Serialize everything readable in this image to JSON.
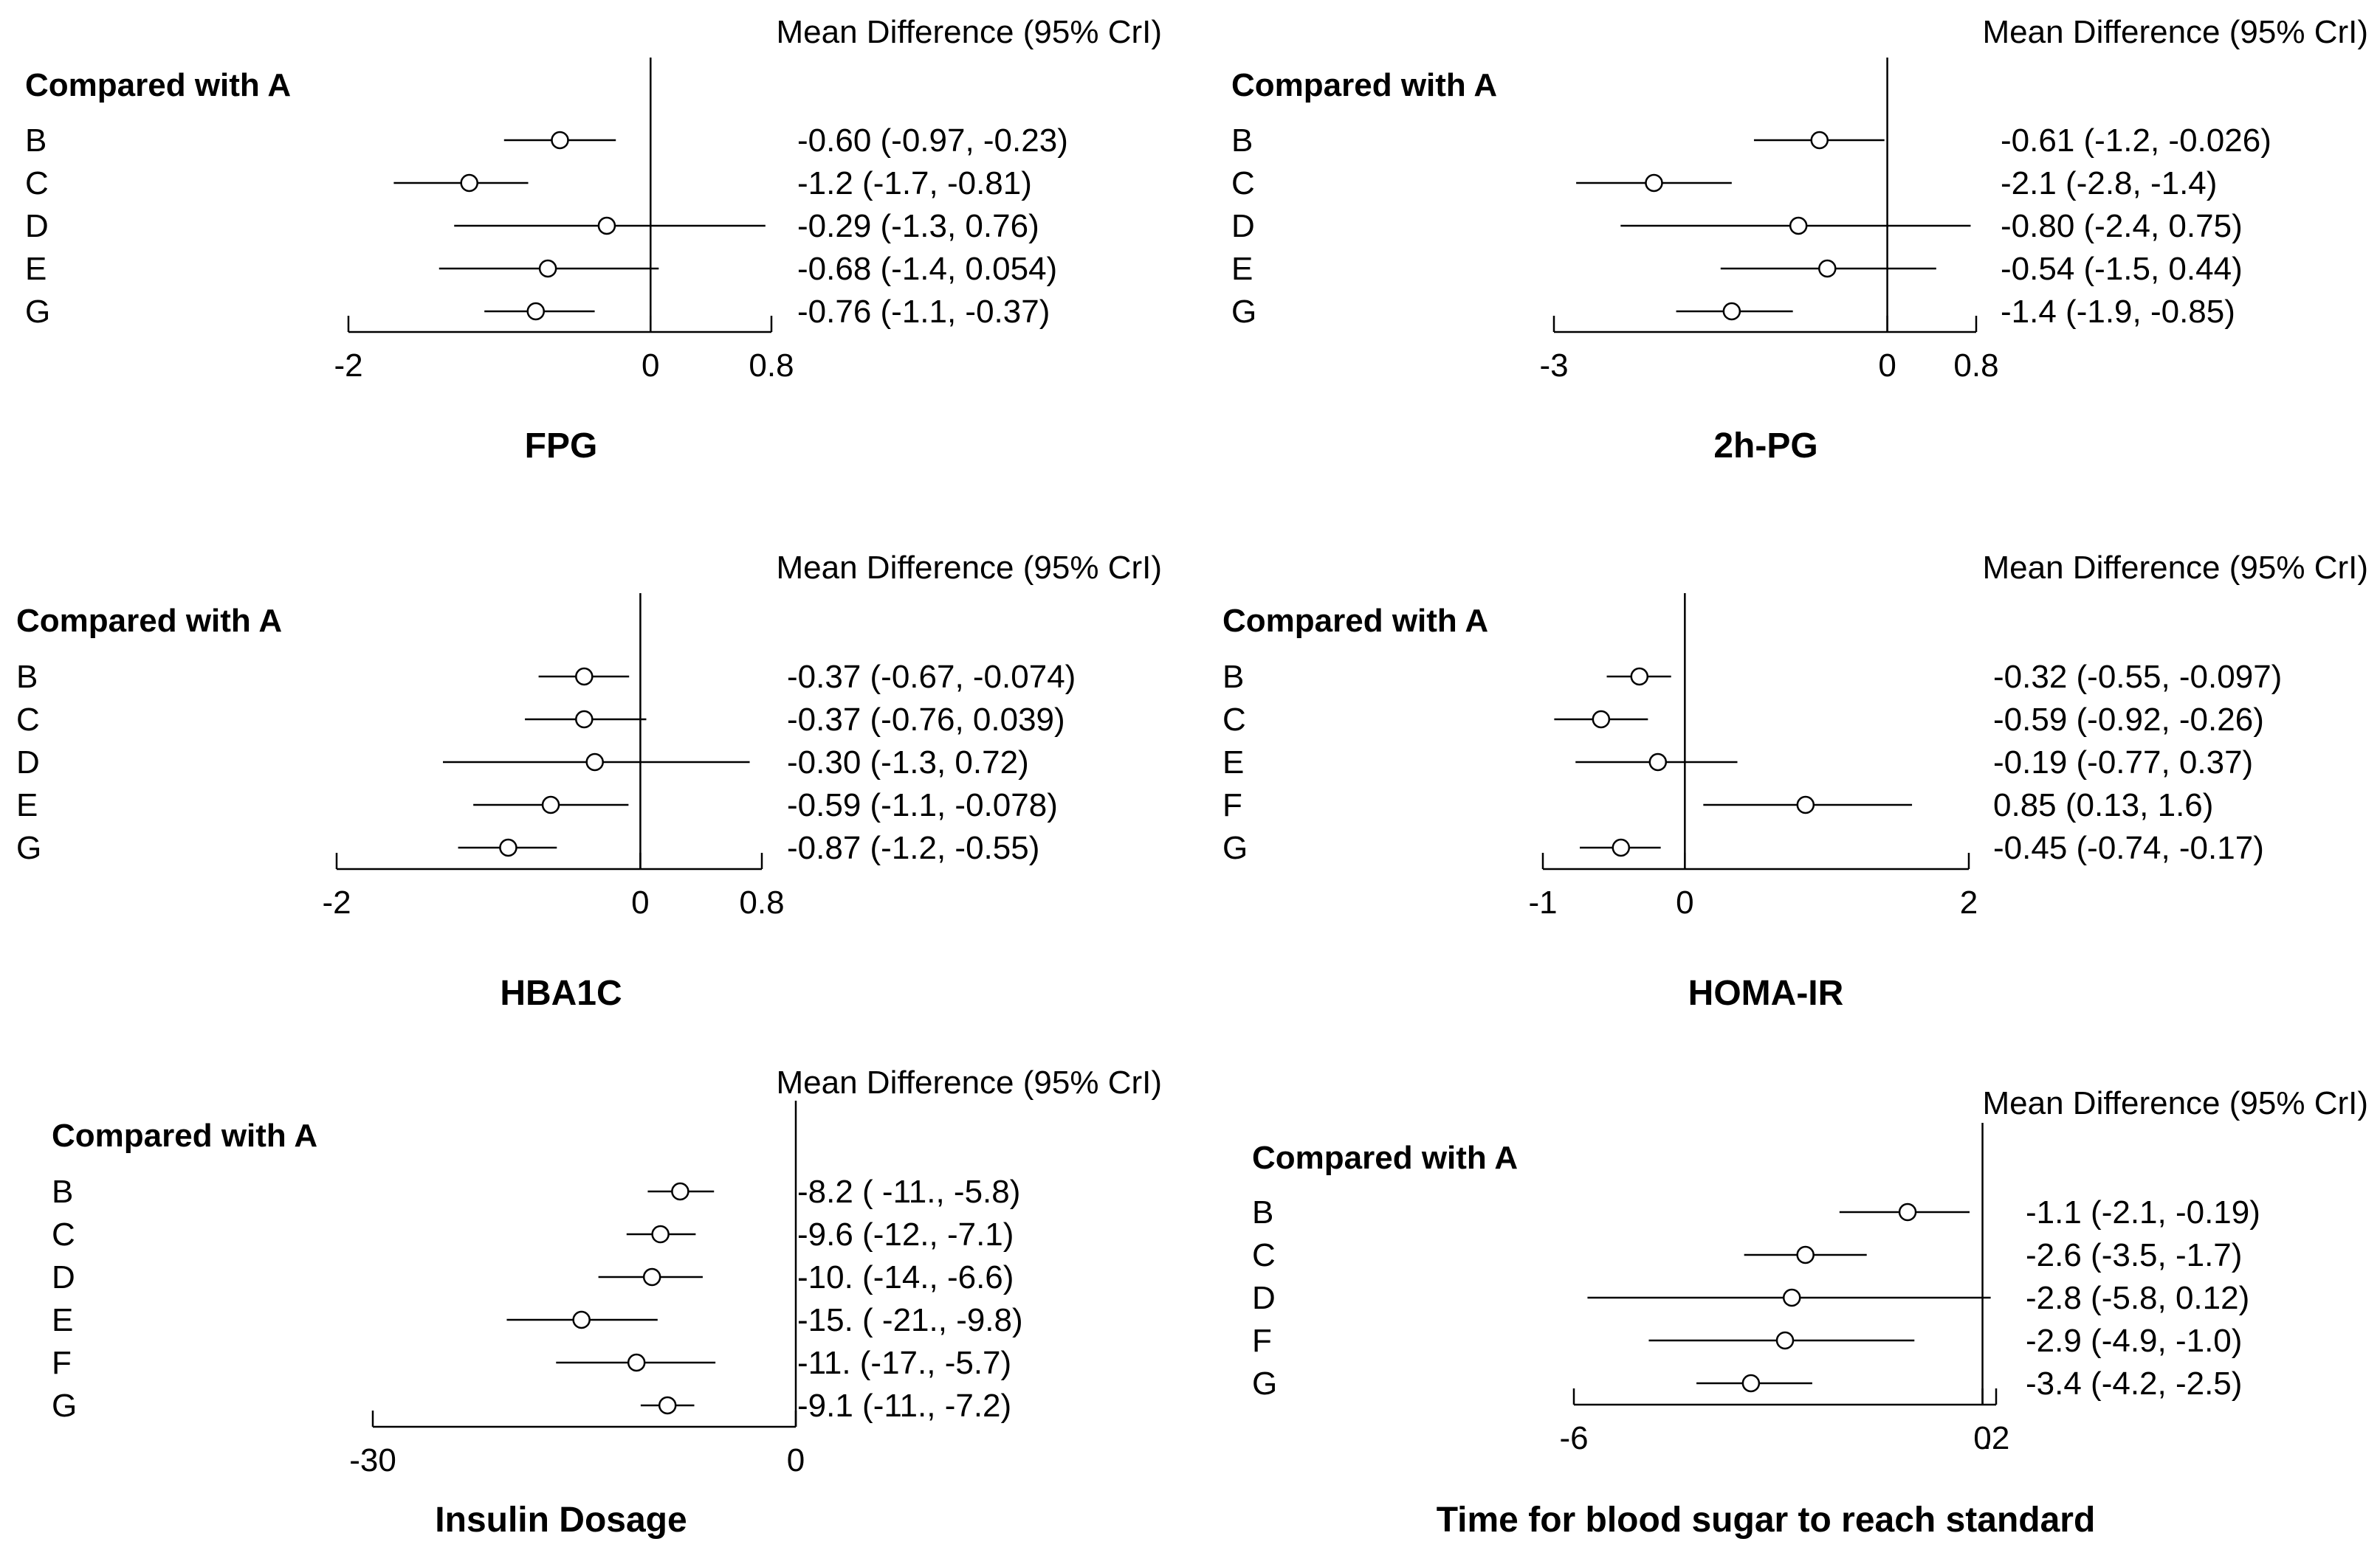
{
  "figure": {
    "style": {
      "line_color": "#000000",
      "marker_fill": "#ffffff",
      "background": "#ffffff"
    }
  },
  "chart_data": [
    {
      "type": "forest",
      "title": "FPG",
      "header": "Mean Difference (95% CrI)",
      "comparison_label": "Compared with A",
      "xlim": [
        -2,
        0.8
      ],
      "ticks": [
        -2,
        0,
        0.8
      ],
      "tick_labels": [
        "-2",
        "0",
        "0.8"
      ],
      "rows": [
        {
          "label": "B",
          "mean": -0.6,
          "lower": -0.97,
          "upper": -0.23,
          "text": "-0.60 (-0.97, -0.23)"
        },
        {
          "label": "C",
          "mean": -1.2,
          "lower": -1.7,
          "upper": -0.81,
          "text": "-1.2 (-1.7, -0.81)"
        },
        {
          "label": "D",
          "mean": -0.29,
          "lower": -1.3,
          "upper": 0.76,
          "text": "-0.29 (-1.3, 0.76)"
        },
        {
          "label": "E",
          "mean": -0.68,
          "lower": -1.4,
          "upper": 0.054,
          "text": "-0.68 (-1.4, 0.054)"
        },
        {
          "label": "G",
          "mean": -0.76,
          "lower": -1.1,
          "upper": -0.37,
          "text": "-0.76 (-1.1, -0.37)"
        }
      ]
    },
    {
      "type": "forest",
      "title": "2h-PG",
      "header": "Mean Difference (95% CrI)",
      "comparison_label": "Compared with A",
      "xlim": [
        -3,
        0.8
      ],
      "ticks": [
        -3,
        0,
        0.8
      ],
      "tick_labels": [
        "-3",
        "0",
        "0.8"
      ],
      "rows": [
        {
          "label": "B",
          "mean": -0.61,
          "lower": -1.2,
          "upper": -0.026,
          "text": "-0.61 (-1.2, -0.026)"
        },
        {
          "label": "C",
          "mean": -2.1,
          "lower": -2.8,
          "upper": -1.4,
          "text": "-2.1 (-2.8, -1.4)"
        },
        {
          "label": "D",
          "mean": -0.8,
          "lower": -2.4,
          "upper": 0.75,
          "text": "-0.80 (-2.4, 0.75)"
        },
        {
          "label": "E",
          "mean": -0.54,
          "lower": -1.5,
          "upper": 0.44,
          "text": "-0.54 (-1.5, 0.44)"
        },
        {
          "label": "G",
          "mean": -1.4,
          "lower": -1.9,
          "upper": -0.85,
          "text": "-1.4 (-1.9, -0.85)"
        }
      ]
    },
    {
      "type": "forest",
      "title": "HBA1C",
      "header": "Mean Difference (95% CrI)",
      "comparison_label": "Compared with A",
      "xlim": [
        -2,
        0.8
      ],
      "ticks": [
        -2,
        0,
        0.8
      ],
      "tick_labels": [
        "-2",
        "0",
        "0.8"
      ],
      "rows": [
        {
          "label": "B",
          "mean": -0.37,
          "lower": -0.67,
          "upper": -0.074,
          "text": "-0.37 (-0.67, -0.074)"
        },
        {
          "label": "C",
          "mean": -0.37,
          "lower": -0.76,
          "upper": 0.039,
          "text": "-0.37 (-0.76, 0.039)"
        },
        {
          "label": "D",
          "mean": -0.3,
          "lower": -1.3,
          "upper": 0.72,
          "text": "-0.30 (-1.3, 0.72)"
        },
        {
          "label": "E",
          "mean": -0.59,
          "lower": -1.1,
          "upper": -0.078,
          "text": "-0.59 (-1.1, -0.078)"
        },
        {
          "label": "G",
          "mean": -0.87,
          "lower": -1.2,
          "upper": -0.55,
          "text": "-0.87 (-1.2, -0.55)"
        }
      ]
    },
    {
      "type": "forest",
      "title": "HOMA-IR",
      "header": "Mean Difference (95% CrI)",
      "comparison_label": "Compared with A",
      "xlim": [
        -1,
        2
      ],
      "ticks": [
        -1,
        0,
        2
      ],
      "tick_labels": [
        "-1",
        "0",
        "2"
      ],
      "rows": [
        {
          "label": "B",
          "mean": -0.32,
          "lower": -0.55,
          "upper": -0.097,
          "text": "-0.32 (-0.55, -0.097)"
        },
        {
          "label": "C",
          "mean": -0.59,
          "lower": -0.92,
          "upper": -0.26,
          "text": "-0.59 (-0.92, -0.26)"
        },
        {
          "label": "E",
          "mean": -0.19,
          "lower": -0.77,
          "upper": 0.37,
          "text": "-0.19 (-0.77, 0.37)"
        },
        {
          "label": "F",
          "mean": 0.85,
          "lower": 0.13,
          "upper": 1.6,
          "text": "0.85 (0.13, 1.6)"
        },
        {
          "label": "G",
          "mean": -0.45,
          "lower": -0.74,
          "upper": -0.17,
          "text": "-0.45 (-0.74, -0.17)"
        }
      ]
    },
    {
      "type": "forest",
      "title": "Insulin Dosage",
      "header": "Mean Difference (95% CrI)",
      "comparison_label": "Compared with A",
      "xlim": [
        -30,
        0
      ],
      "ticks": [
        -30,
        0
      ],
      "tick_labels": [
        "-30",
        "0"
      ],
      "rows": [
        {
          "label": "B",
          "mean": -8.2,
          "lower": -10.5,
          "upper": -5.8,
          "text": "-8.2 ( -11., -5.8)"
        },
        {
          "label": "C",
          "mean": -9.6,
          "lower": -12.0,
          "upper": -7.1,
          "text": "-9.6 (-12., -7.1)"
        },
        {
          "label": "D",
          "mean": -10.2,
          "lower": -14.0,
          "upper": -6.6,
          "text": "-10. (-14., -6.6)"
        },
        {
          "label": "E",
          "mean": -15.2,
          "lower": -20.5,
          "upper": -9.8,
          "text": "-15. ( -21., -9.8)"
        },
        {
          "label": "F",
          "mean": -11.3,
          "lower": -17.0,
          "upper": -5.7,
          "text": "-11. (-17., -5.7)"
        },
        {
          "label": "G",
          "mean": -9.1,
          "lower": -11.0,
          "upper": -7.2,
          "text": "-9.1 (-11., -7.2)"
        }
      ]
    },
    {
      "type": "forest",
      "title": "Time for blood sugar to reach standard",
      "header": "Mean Difference (95% CrI)",
      "comparison_label": "Compared with A",
      "xlim": [
        -6,
        0.2
      ],
      "ticks": [
        -6,
        0,
        0.2
      ],
      "tick_labels": [
        "-6",
        "0",
        ".2"
      ],
      "rows": [
        {
          "label": "B",
          "mean": -1.1,
          "lower": -2.1,
          "upper": -0.19,
          "text": "-1.1 (-2.1, -0.19)"
        },
        {
          "label": "C",
          "mean": -2.6,
          "lower": -3.5,
          "upper": -1.7,
          "text": "-2.6 (-3.5, -1.7)"
        },
        {
          "label": "D",
          "mean": -2.8,
          "lower": -5.8,
          "upper": 0.12,
          "text": "-2.8 (-5.8, 0.12)"
        },
        {
          "label": "F",
          "mean": -2.9,
          "lower": -4.9,
          "upper": -1.0,
          "text": "-2.9 (-4.9, -1.0)"
        },
        {
          "label": "G",
          "mean": -3.4,
          "lower": -4.2,
          "upper": -2.5,
          "text": "-3.4 (-4.2, -2.5)"
        }
      ]
    }
  ]
}
